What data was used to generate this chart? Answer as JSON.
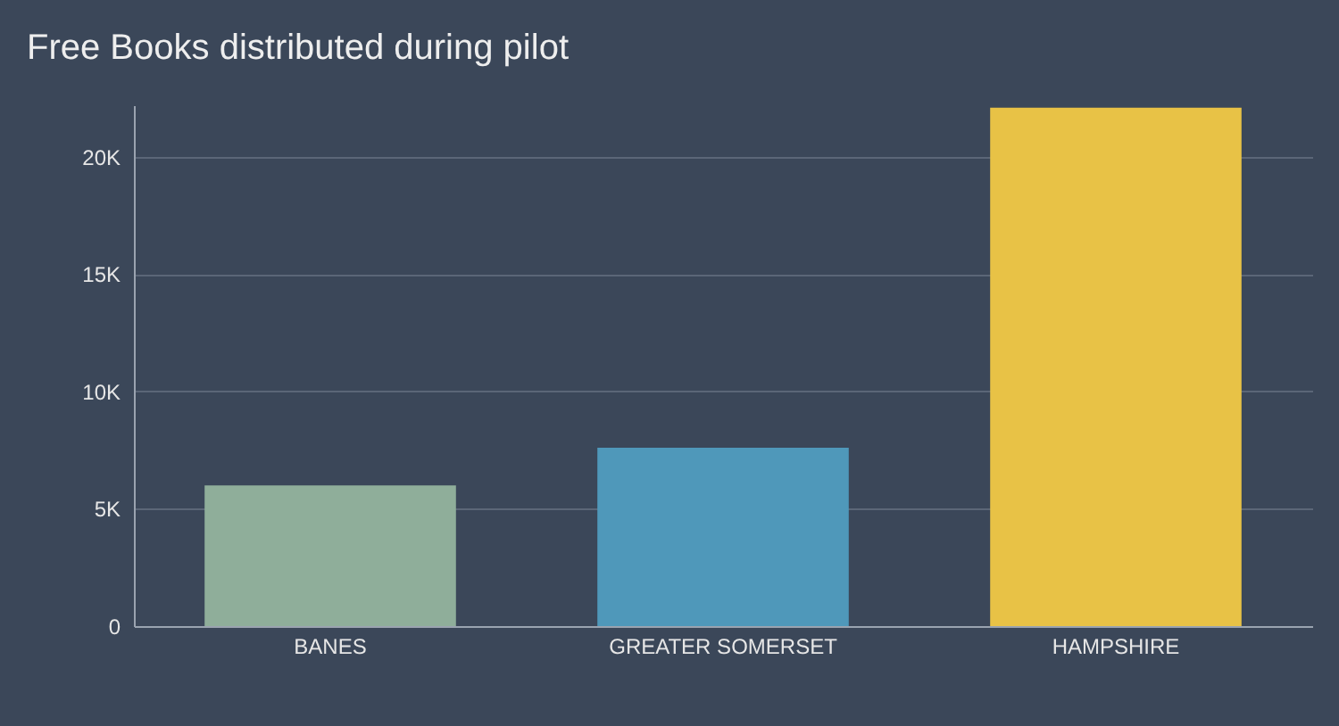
{
  "chart_data": {
    "type": "bar",
    "title": "Free Books distributed during pilot",
    "categories": [
      "BANES",
      "GREATER SOMERSET",
      "HAMPSHIRE"
    ],
    "values": [
      6000,
      7600,
      22100
    ],
    "colors": [
      "#8fae9a",
      "#4f98ba",
      "#e8c246"
    ],
    "ylim": [
      0,
      22200
    ],
    "yticks": [
      {
        "value": 0,
        "label": "0"
      },
      {
        "value": 5000,
        "label": "5K"
      },
      {
        "value": 10000,
        "label": "10K"
      },
      {
        "value": 15000,
        "label": "15K"
      },
      {
        "value": 20000,
        "label": "20K"
      }
    ],
    "grid": "y"
  }
}
